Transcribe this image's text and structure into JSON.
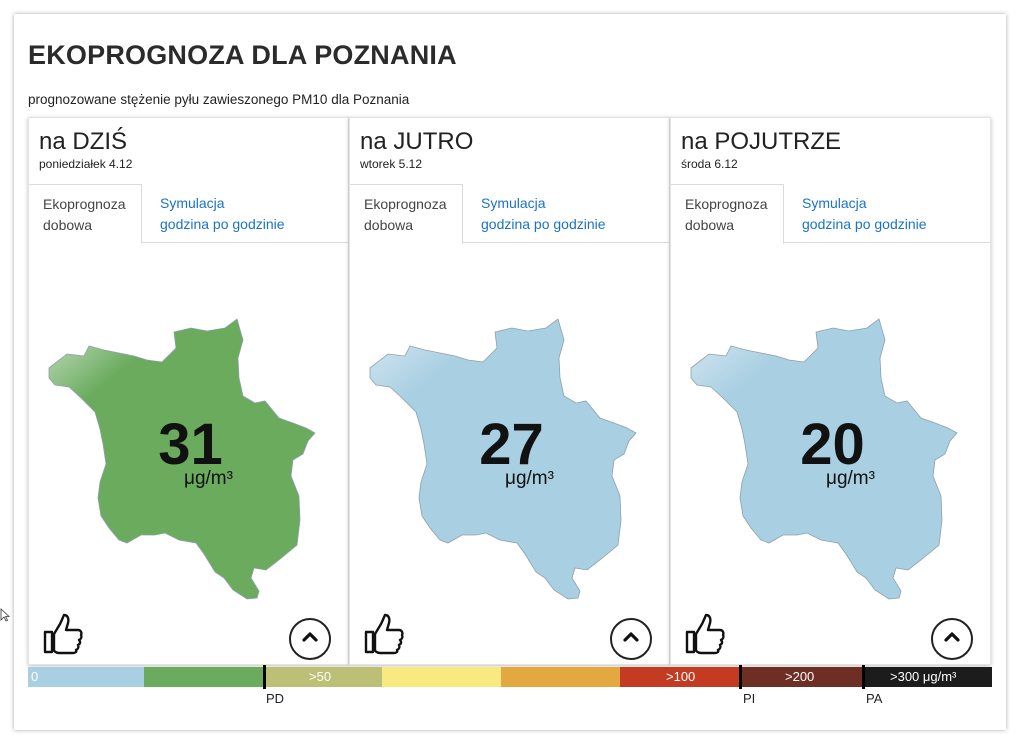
{
  "page": {
    "title": "EKOPROGNOZA DLA POZNANIA",
    "subtitle": "prognozowane stężenie pyłu zawieszonego PM10 dla Poznania"
  },
  "tabs": {
    "active_line1": "Ekoprognoza",
    "active_line2": "dobowa",
    "link_line1": "Symulacja",
    "link_line2": "godzina po godzinie"
  },
  "unit": "μg/m³",
  "days": [
    {
      "label": "na DZIŚ",
      "date": "poniedziałek 4.12",
      "value": "31",
      "fill_color": "#6aab5e"
    },
    {
      "label": "na JUTRO",
      "date": "wtorek 5.12",
      "value": "27",
      "fill_color": "#a8cfe2"
    },
    {
      "label": "na POJUTRZE",
      "date": "środa 6.12",
      "value": "20",
      "fill_color": "#a8cfe2"
    }
  ],
  "scale": {
    "segments": [
      {
        "label": "0",
        "color": "#a8cfe2"
      },
      {
        "label": "",
        "color": "#6aab5e"
      },
      {
        "label": ">50",
        "color": "#bcc076"
      },
      {
        "label": "",
        "color": "#f8ea80"
      },
      {
        "label": "",
        "color": "#e3a840"
      },
      {
        "label": ">100",
        "color": "#c23b22"
      },
      {
        "label": ">200",
        "color": "#6e2e24"
      },
      {
        "label": ">300 μg/m³",
        "color": "#1c1c1c"
      }
    ],
    "markers": [
      "PD",
      "PI",
      "PA"
    ]
  },
  "icons": {
    "like": "thumbs-up-icon",
    "up": "chevron-up-icon"
  }
}
